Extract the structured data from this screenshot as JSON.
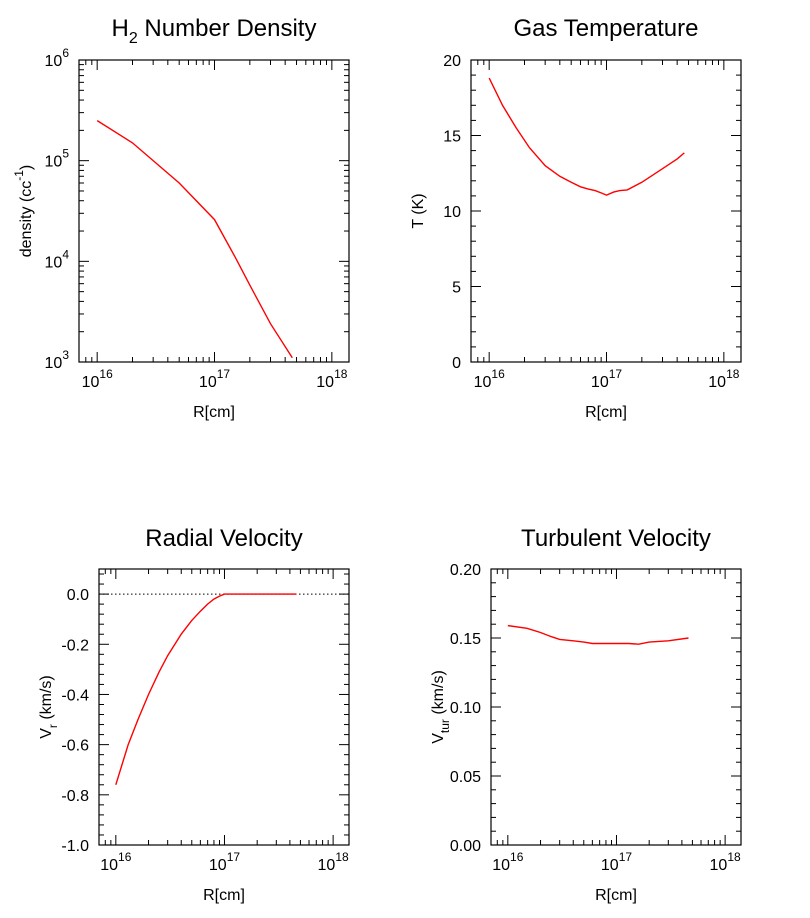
{
  "chart_data": [
    {
      "type": "line",
      "title": "H2 Number Density",
      "title_main": "H",
      "title_sub": "2",
      "title_rest": " Number Density",
      "xlabel": "R[cm]",
      "ylabel": "density (cc",
      "ylabel_sup": "-1",
      "ylabel_close": ")",
      "xscale": "log",
      "yscale": "log",
      "xlim": [
        7000000000000000.0,
        1.4e+18
      ],
      "ylim": [
        1000,
        1000000
      ],
      "xticks": [
        {
          "value": 1e+16,
          "base": "10",
          "exp": "16"
        },
        {
          "value": 1e+17,
          "base": "10",
          "exp": "17"
        },
        {
          "value": 1e+18,
          "base": "10",
          "exp": "18"
        }
      ],
      "yticks": [
        {
          "value": 1000,
          "base": "10",
          "exp": "3"
        },
        {
          "value": 10000,
          "base": "10",
          "exp": "4"
        },
        {
          "value": 100000,
          "base": "10",
          "exp": "5"
        },
        {
          "value": 1000000,
          "base": "10",
          "exp": "6"
        }
      ],
      "series": [
        {
          "color": "#ff0000",
          "x": [
            1e+16,
            2e+16,
            5e+16,
            1e+17,
            1.5e+17,
            2e+17,
            3e+17,
            4.6e+17
          ],
          "y": [
            250000,
            150000,
            60000,
            26000,
            11000,
            5800,
            2400,
            1100
          ]
        }
      ],
      "zero_line": false
    },
    {
      "type": "line",
      "title": "Gas Temperature",
      "xlabel": "R[cm]",
      "ylabel": "T (K)",
      "xscale": "log",
      "yscale": "linear",
      "xlim": [
        7000000000000000.0,
        1.4e+18
      ],
      "ylim": [
        0,
        20
      ],
      "xticks": [
        {
          "value": 1e+16,
          "base": "10",
          "exp": "16"
        },
        {
          "value": 1e+17,
          "base": "10",
          "exp": "17"
        },
        {
          "value": 1e+18,
          "base": "10",
          "exp": "18"
        }
      ],
      "yticks": [
        {
          "value": 0,
          "label": "0"
        },
        {
          "value": 5,
          "label": "5"
        },
        {
          "value": 10,
          "label": "10"
        },
        {
          "value": 15,
          "label": "15"
        },
        {
          "value": 20,
          "label": "20"
        }
      ],
      "series": [
        {
          "color": "#ff0000",
          "x": [
            1e+16,
            1.3e+16,
            1.7e+16,
            2.2e+16,
            3e+16,
            4e+16,
            5e+16,
            6e+16,
            7e+16,
            8e+16,
            9e+16,
            1e+17,
            1.15e+17,
            1.3e+17,
            1.5e+17,
            2e+17,
            2.5e+17,
            3e+17,
            3.5e+17,
            4e+17,
            4.6e+17
          ],
          "y": [
            18.8,
            17.0,
            15.5,
            14.2,
            13.0,
            12.3,
            11.9,
            11.6,
            11.45,
            11.35,
            11.2,
            11.05,
            11.25,
            11.35,
            11.4,
            11.9,
            12.4,
            12.8,
            13.15,
            13.45,
            13.85
          ]
        }
      ],
      "zero_line": false
    },
    {
      "type": "line",
      "title": "Radial Velocity",
      "xlabel": "R[cm]",
      "ylabel": "V",
      "ylabel_sub": "r",
      "ylabel_rest": " (km/s)",
      "xscale": "log",
      "yscale": "linear",
      "xlim": [
        7000000000000000.0,
        1.4e+18
      ],
      "ylim": [
        -1.0,
        0.1
      ],
      "xticks": [
        {
          "value": 1e+16,
          "base": "10",
          "exp": "16"
        },
        {
          "value": 1e+17,
          "base": "10",
          "exp": "17"
        },
        {
          "value": 1e+18,
          "base": "10",
          "exp": "18"
        }
      ],
      "yticks": [
        {
          "value": -1.0,
          "label": "-1.0"
        },
        {
          "value": -0.8,
          "label": "-0.8"
        },
        {
          "value": -0.6,
          "label": "-0.6"
        },
        {
          "value": -0.4,
          "label": "-0.4"
        },
        {
          "value": -0.2,
          "label": "-0.2"
        },
        {
          "value": 0.0,
          "label": "0.0"
        }
      ],
      "series": [
        {
          "color": "#ff0000",
          "x": [
            1e+16,
            1.3e+16,
            1.6e+16,
            2e+16,
            2.5e+16,
            3e+16,
            4e+16,
            5e+16,
            6e+16,
            7e+16,
            8e+16,
            9e+16,
            1e+17,
            2e+17,
            3e+17,
            4.6e+17
          ],
          "y": [
            -0.76,
            -0.6,
            -0.5,
            -0.4,
            -0.31,
            -0.245,
            -0.16,
            -0.105,
            -0.068,
            -0.04,
            -0.02,
            -0.008,
            0.0,
            0.0,
            0.0,
            0.0
          ]
        }
      ],
      "zero_line": true
    },
    {
      "type": "line",
      "title": "Turbulent Velocity",
      "xlabel": "R[cm]",
      "ylabel": "V",
      "ylabel_sub": "tur",
      "ylabel_rest": " (km/s)",
      "xscale": "log",
      "yscale": "linear",
      "xlim": [
        7000000000000000.0,
        1.4e+18
      ],
      "ylim": [
        0,
        0.2
      ],
      "xticks": [
        {
          "value": 1e+16,
          "base": "10",
          "exp": "16"
        },
        {
          "value": 1e+17,
          "base": "10",
          "exp": "17"
        },
        {
          "value": 1e+18,
          "base": "10",
          "exp": "18"
        }
      ],
      "yticks": [
        {
          "value": 0.0,
          "label": "0.00"
        },
        {
          "value": 0.05,
          "label": "0.05"
        },
        {
          "value": 0.1,
          "label": "0.10"
        },
        {
          "value": 0.15,
          "label": "0.15"
        },
        {
          "value": 0.2,
          "label": "0.20"
        }
      ],
      "series": [
        {
          "color": "#ff0000",
          "x": [
            1e+16,
            1.5e+16,
            2e+16,
            2.5e+16,
            3e+16,
            4e+16,
            5e+16,
            6e+16,
            8e+16,
            1e+17,
            1.3e+17,
            1.6e+17,
            2e+17,
            3e+17,
            4.6e+17
          ],
          "y": [
            0.159,
            0.157,
            0.154,
            0.151,
            0.149,
            0.148,
            0.147,
            0.146,
            0.146,
            0.146,
            0.146,
            0.1455,
            0.147,
            0.148,
            0.15
          ]
        }
      ],
      "zero_line": false
    }
  ]
}
